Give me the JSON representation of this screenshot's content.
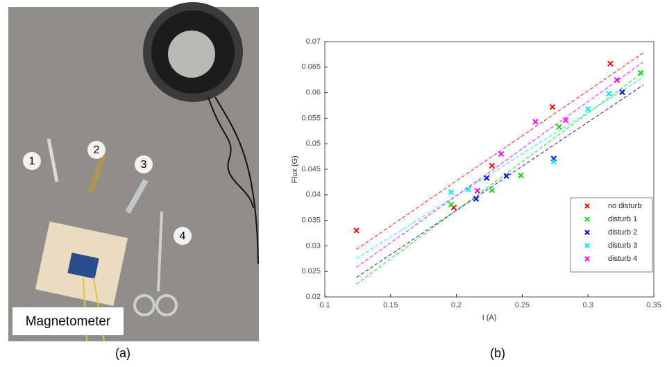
{
  "photo": {
    "labels": [
      "1",
      "2",
      "3",
      "4"
    ],
    "caption": "Magnetometer"
  },
  "panel_labels": [
    "(a)",
    "(b)"
  ],
  "chart_data": {
    "type": "scatter",
    "xlabel": "I (A)",
    "ylabel": "Flux (G)",
    "xlim": [
      0.1,
      0.35
    ],
    "xticks": [
      0.1,
      0.15,
      0.2,
      0.25,
      0.3,
      0.35
    ],
    "ylim": [
      0.02,
      0.07
    ],
    "yticks": [
      0.02,
      0.025,
      0.03,
      0.035,
      0.04,
      0.045,
      0.05,
      0.055,
      0.06,
      0.065,
      0.07
    ],
    "legend": "lower right",
    "fit_x": [
      0.124,
      0.342
    ],
    "series": [
      {
        "name": "no disturb",
        "color": "#ff0000",
        "x": [
          0.124,
          0.198,
          0.227,
          0.273,
          0.317
        ],
        "values": [
          0.033,
          0.0375,
          0.0457,
          0.0572,
          0.0657
        ],
        "fit": [
          0.0293,
          0.0678
        ]
      },
      {
        "name": "disturb 1",
        "color": "#00e000",
        "x": [
          0.196,
          0.227,
          0.249,
          0.278,
          0.34
        ],
        "values": [
          0.0381,
          0.0409,
          0.0438,
          0.0533,
          0.0639
        ],
        "fit": [
          0.0225,
          0.064
        ]
      },
      {
        "name": "disturb 2",
        "color": "#0000e0",
        "x": [
          0.215,
          0.223,
          0.238,
          0.274,
          0.326
        ],
        "values": [
          0.0392,
          0.0433,
          0.0437,
          0.0471,
          0.0601
        ],
        "fit": [
          0.0238,
          0.0615
        ]
      },
      {
        "name": "disturb 3",
        "color": "#00e8e8",
        "x": [
          0.196,
          0.209,
          0.274,
          0.3,
          0.316
        ],
        "values": [
          0.0405,
          0.041,
          0.0465,
          0.0568,
          0.0598
        ],
        "fit": [
          0.0275,
          0.063
        ]
      },
      {
        "name": "disturb 4",
        "color": "#ee00ee",
        "x": [
          0.216,
          0.234,
          0.26,
          0.283,
          0.322
        ],
        "values": [
          0.0408,
          0.048,
          0.0543,
          0.0546,
          0.0625
        ],
        "fit": [
          0.0258,
          0.066
        ]
      }
    ]
  }
}
